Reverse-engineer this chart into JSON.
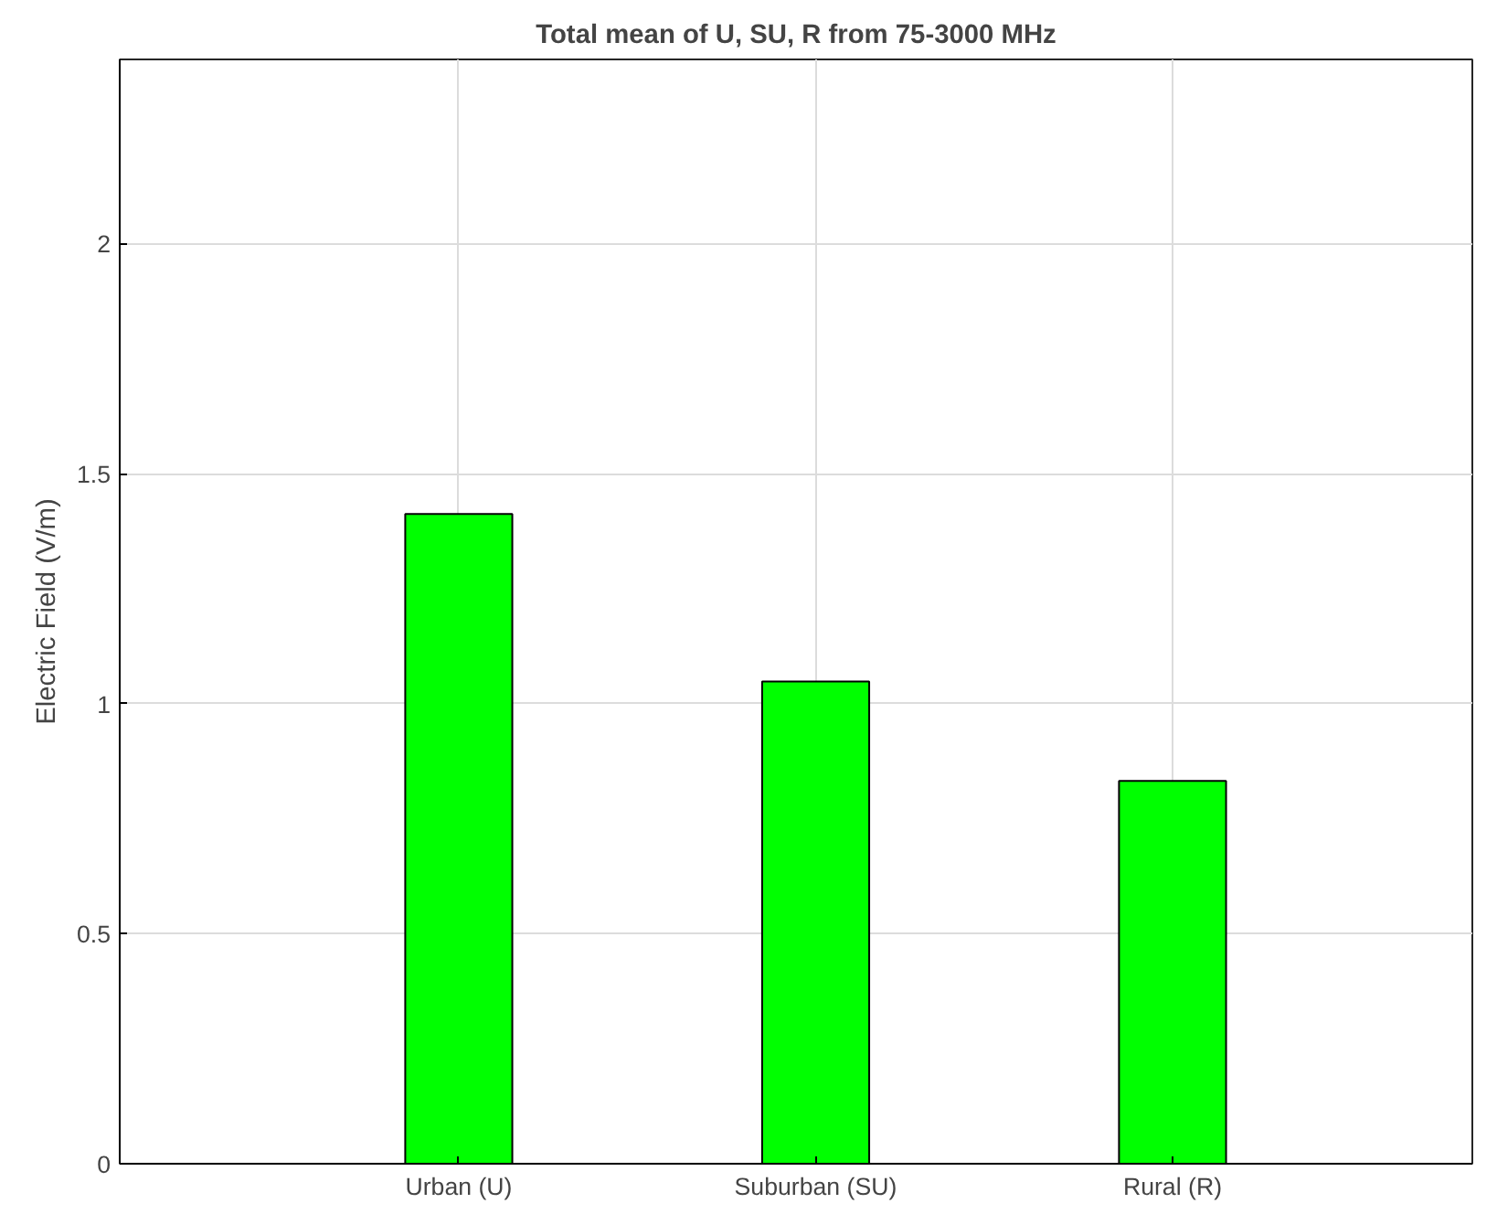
{
  "chart_data": {
    "type": "bar",
    "title": "Total mean of U, SU, R from 75-3000 MHz",
    "ylabel": "Electric Field (V/m)",
    "categories": [
      "Urban (U)",
      "Suburban (SU)",
      "Rural (R)"
    ],
    "values": [
      1.412,
      1.048,
      0.832
    ],
    "color": "#00ff00",
    "ylim": [
      0,
      2.4
    ],
    "yticks": [
      0,
      0.5,
      1,
      1.5,
      2
    ],
    "grid": true
  }
}
